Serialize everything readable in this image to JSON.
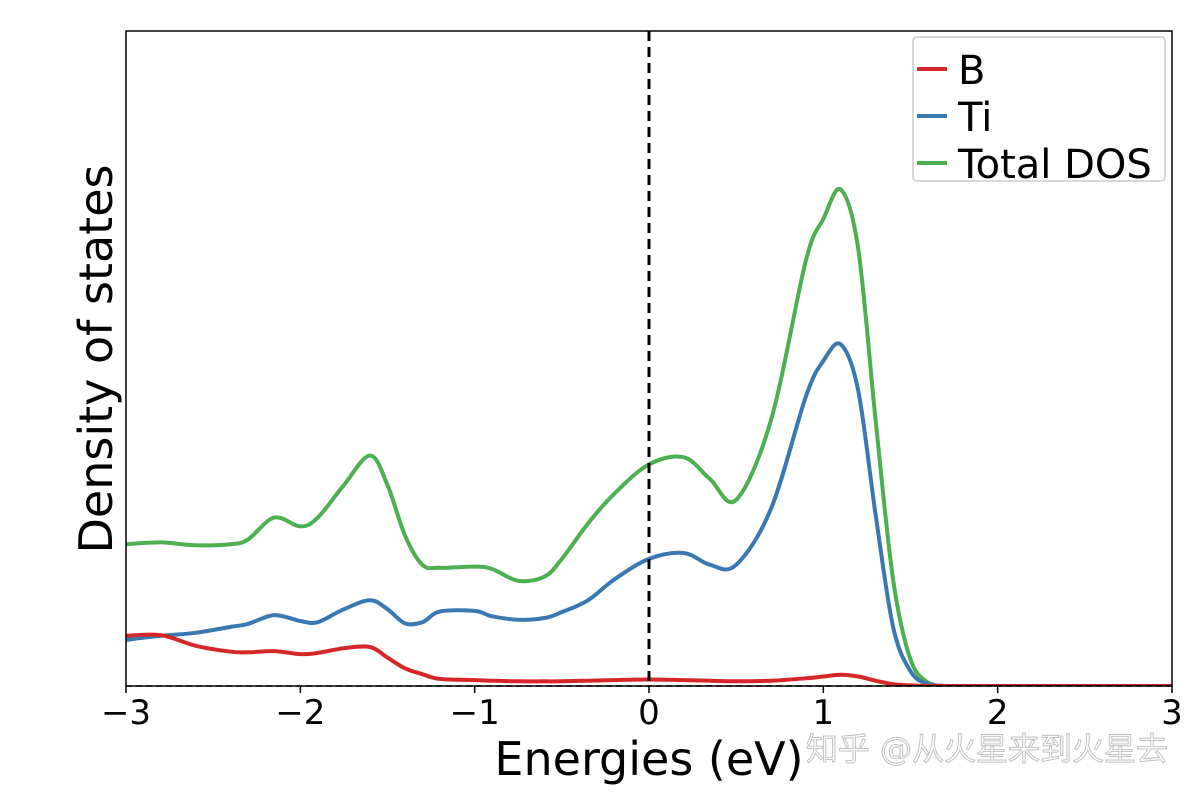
{
  "chart_data": {
    "type": "line",
    "xlabel": "Energies (eV)",
    "ylabel": "Density of states",
    "xlim": [
      -3,
      3
    ],
    "ylim": [
      0,
      1
    ],
    "y_ticks_shown": false,
    "grid": false,
    "legend_position": "top-right",
    "fermi_level": 0,
    "x_tick_labels": [
      "−3",
      "−2",
      "−1",
      "0",
      "1",
      "2",
      "3"
    ],
    "x_ticks": [
      -3,
      -2,
      -1,
      0,
      1,
      2,
      3
    ],
    "x": [
      -3.0,
      -2.8,
      -2.6,
      -2.4,
      -2.3,
      -2.15,
      -2.0,
      -1.9,
      -1.75,
      -1.6,
      -1.5,
      -1.4,
      -1.3,
      -1.2,
      -1.0,
      -0.9,
      -0.75,
      -0.6,
      -0.5,
      -0.35,
      -0.2,
      0.0,
      0.2,
      0.35,
      0.5,
      0.7,
      0.9,
      1.0,
      1.1,
      1.2,
      1.3,
      1.4,
      1.5,
      1.6,
      1.7,
      1.8,
      2.0,
      2.5,
      3.0
    ],
    "series": [
      {
        "name": "B",
        "color": "#d62728",
        "values": [
          0.085,
          0.086,
          0.068,
          0.058,
          0.057,
          0.059,
          0.054,
          0.056,
          0.064,
          0.066,
          0.048,
          0.03,
          0.02,
          0.012,
          0.01,
          0.009,
          0.008,
          0.008,
          0.008,
          0.009,
          0.01,
          0.011,
          0.01,
          0.009,
          0.008,
          0.009,
          0.013,
          0.016,
          0.019,
          0.016,
          0.009,
          0.003,
          0.001,
          0,
          0,
          0,
          0,
          0,
          0
        ]
      },
      {
        "name": "Ti",
        "color": "#3a78b2",
        "values": [
          0.078,
          0.085,
          0.09,
          0.1,
          0.105,
          0.12,
          0.11,
          0.108,
          0.13,
          0.145,
          0.13,
          0.106,
          0.108,
          0.126,
          0.127,
          0.118,
          0.112,
          0.115,
          0.125,
          0.145,
          0.18,
          0.215,
          0.225,
          0.205,
          0.205,
          0.3,
          0.49,
          0.55,
          0.578,
          0.5,
          0.29,
          0.1,
          0.025,
          0.003,
          0,
          0,
          0,
          0,
          0
        ]
      },
      {
        "name": "Total DOS",
        "color": "#4caf50",
        "values": [
          0.24,
          0.243,
          0.238,
          0.24,
          0.248,
          0.285,
          0.27,
          0.285,
          0.34,
          0.39,
          0.34,
          0.255,
          0.205,
          0.2,
          0.202,
          0.198,
          0.178,
          0.185,
          0.215,
          0.275,
          0.325,
          0.375,
          0.387,
          0.35,
          0.315,
          0.45,
          0.72,
          0.79,
          0.84,
          0.74,
          0.45,
          0.18,
          0.045,
          0.006,
          0,
          0,
          0,
          0,
          0
        ]
      }
    ]
  },
  "watermark": "知乎 @从火星来到火星去"
}
